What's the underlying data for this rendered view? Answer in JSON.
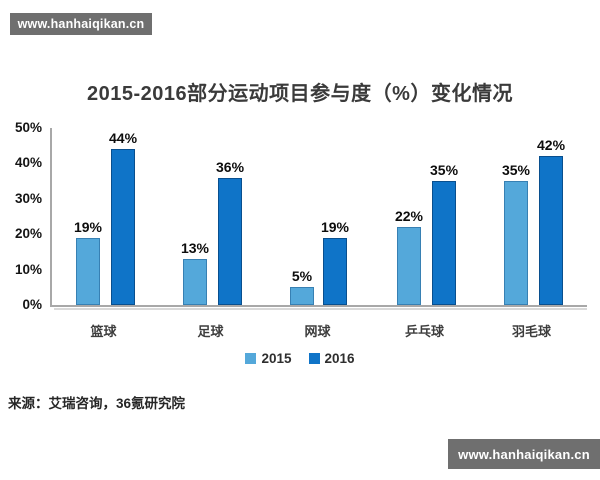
{
  "watermark_top": {
    "text": "www.hanhaiqikan.cn"
  },
  "watermark_bottom": {
    "text": "www.hanhaiqikan.cn"
  },
  "source_note": "来源：艾瑞咨询，36氪研究院",
  "colors": {
    "series_2015": "#54A8DA",
    "series_2016": "#0F74C8",
    "axis": "#A8A8A8",
    "watermark_bg": "#6F6F6F",
    "title_text": "#3A3A3A"
  },
  "chart_data": {
    "type": "bar",
    "title": "2015-2016部分运动项目参与度（%）变化情况",
    "categories": [
      "篮球",
      "足球",
      "网球",
      "乒乓球",
      "羽毛球"
    ],
    "series": [
      {
        "name": "2015",
        "color": "#54A8DA",
        "values": [
          19,
          13,
          5,
          22,
          35
        ]
      },
      {
        "name": "2016",
        "color": "#0F74C8",
        "values": [
          44,
          36,
          19,
          35,
          42
        ]
      }
    ],
    "value_label_suffix": "%",
    "ylim": [
      0,
      50
    ],
    "yticks": [
      "0%",
      "10%",
      "20%",
      "30%",
      "40%",
      "50%"
    ],
    "grid": false,
    "legend_position": "bottom",
    "value_labels": true
  }
}
